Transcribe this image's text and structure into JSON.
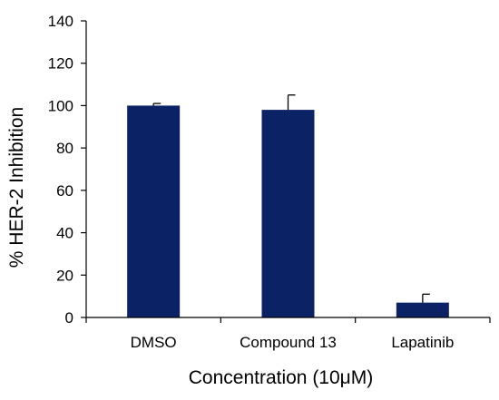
{
  "chart_data": {
    "type": "bar",
    "title": "",
    "xlabel": "Concentration (10μM)",
    "ylabel": "% HER-2 Inhibition",
    "categories": [
      "DMSO",
      "Compound 13",
      "Lapatinib"
    ],
    "values": [
      100,
      98,
      7
    ],
    "errors": [
      1,
      7,
      4
    ],
    "ylim": [
      0,
      140
    ],
    "yticks": [
      0,
      20,
      40,
      60,
      80,
      100,
      120,
      140
    ],
    "bar_color": "#0b2265",
    "grid": false,
    "legend": "none"
  }
}
